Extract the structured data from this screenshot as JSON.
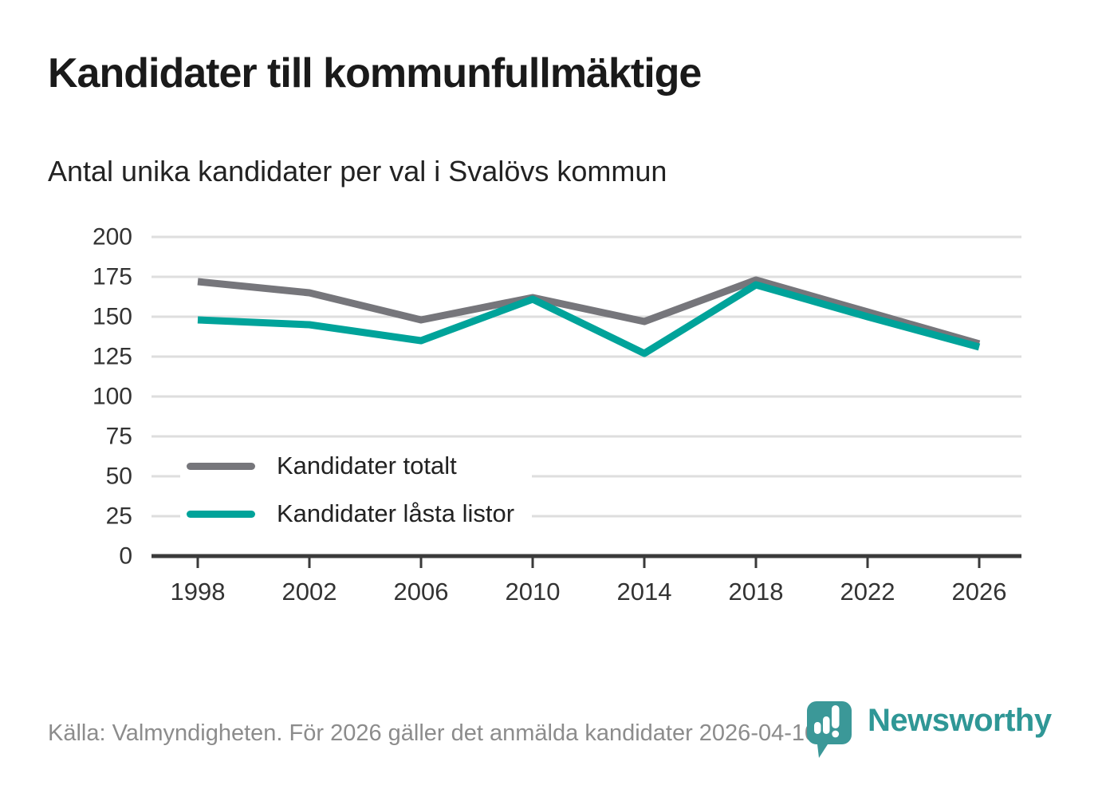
{
  "page": {
    "title": "Kandidater till kommunfullmäktige",
    "subtitle": "Antal unika kandidater per val i Svalövs kommun"
  },
  "chart_data": {
    "type": "line",
    "categories": [
      "1998",
      "2002",
      "2006",
      "2010",
      "2014",
      "2018",
      "2022",
      "2026"
    ],
    "series": [
      {
        "name": "Kandidater totalt",
        "color": "#76767B",
        "values": [
          172,
          165,
          148,
          162,
          147,
          173,
          153,
          133
        ]
      },
      {
        "name": "Kandidater låsta listor",
        "color": "#00A39A",
        "values": [
          148,
          145,
          135,
          161,
          127,
          170,
          150,
          131
        ]
      }
    ],
    "title": "Kandidater till kommunfullmäktige",
    "subtitle": "Antal unika kandidater per val i Svalövs kommun",
    "xlabel": "",
    "ylabel": "",
    "ylim": [
      0,
      200
    ],
    "yticks": [
      0,
      25,
      50,
      75,
      100,
      125,
      150,
      175,
      200
    ],
    "grid": true,
    "legend_position": "inside-left",
    "colors": {
      "grid_line": "#DEDEDE",
      "axis_line": "#3A3A3A",
      "tick_label": "#333333"
    }
  },
  "footer": {
    "source": "Källa: Valmyndigheten. För 2026 gäller det anmälda kandidater 2026-04-10."
  },
  "logo": {
    "text": "Newsworthy",
    "icon": "newsworthy-speech-bubble-barchart-icon",
    "color": "#2F9796",
    "icon_color": "#3B9898"
  }
}
